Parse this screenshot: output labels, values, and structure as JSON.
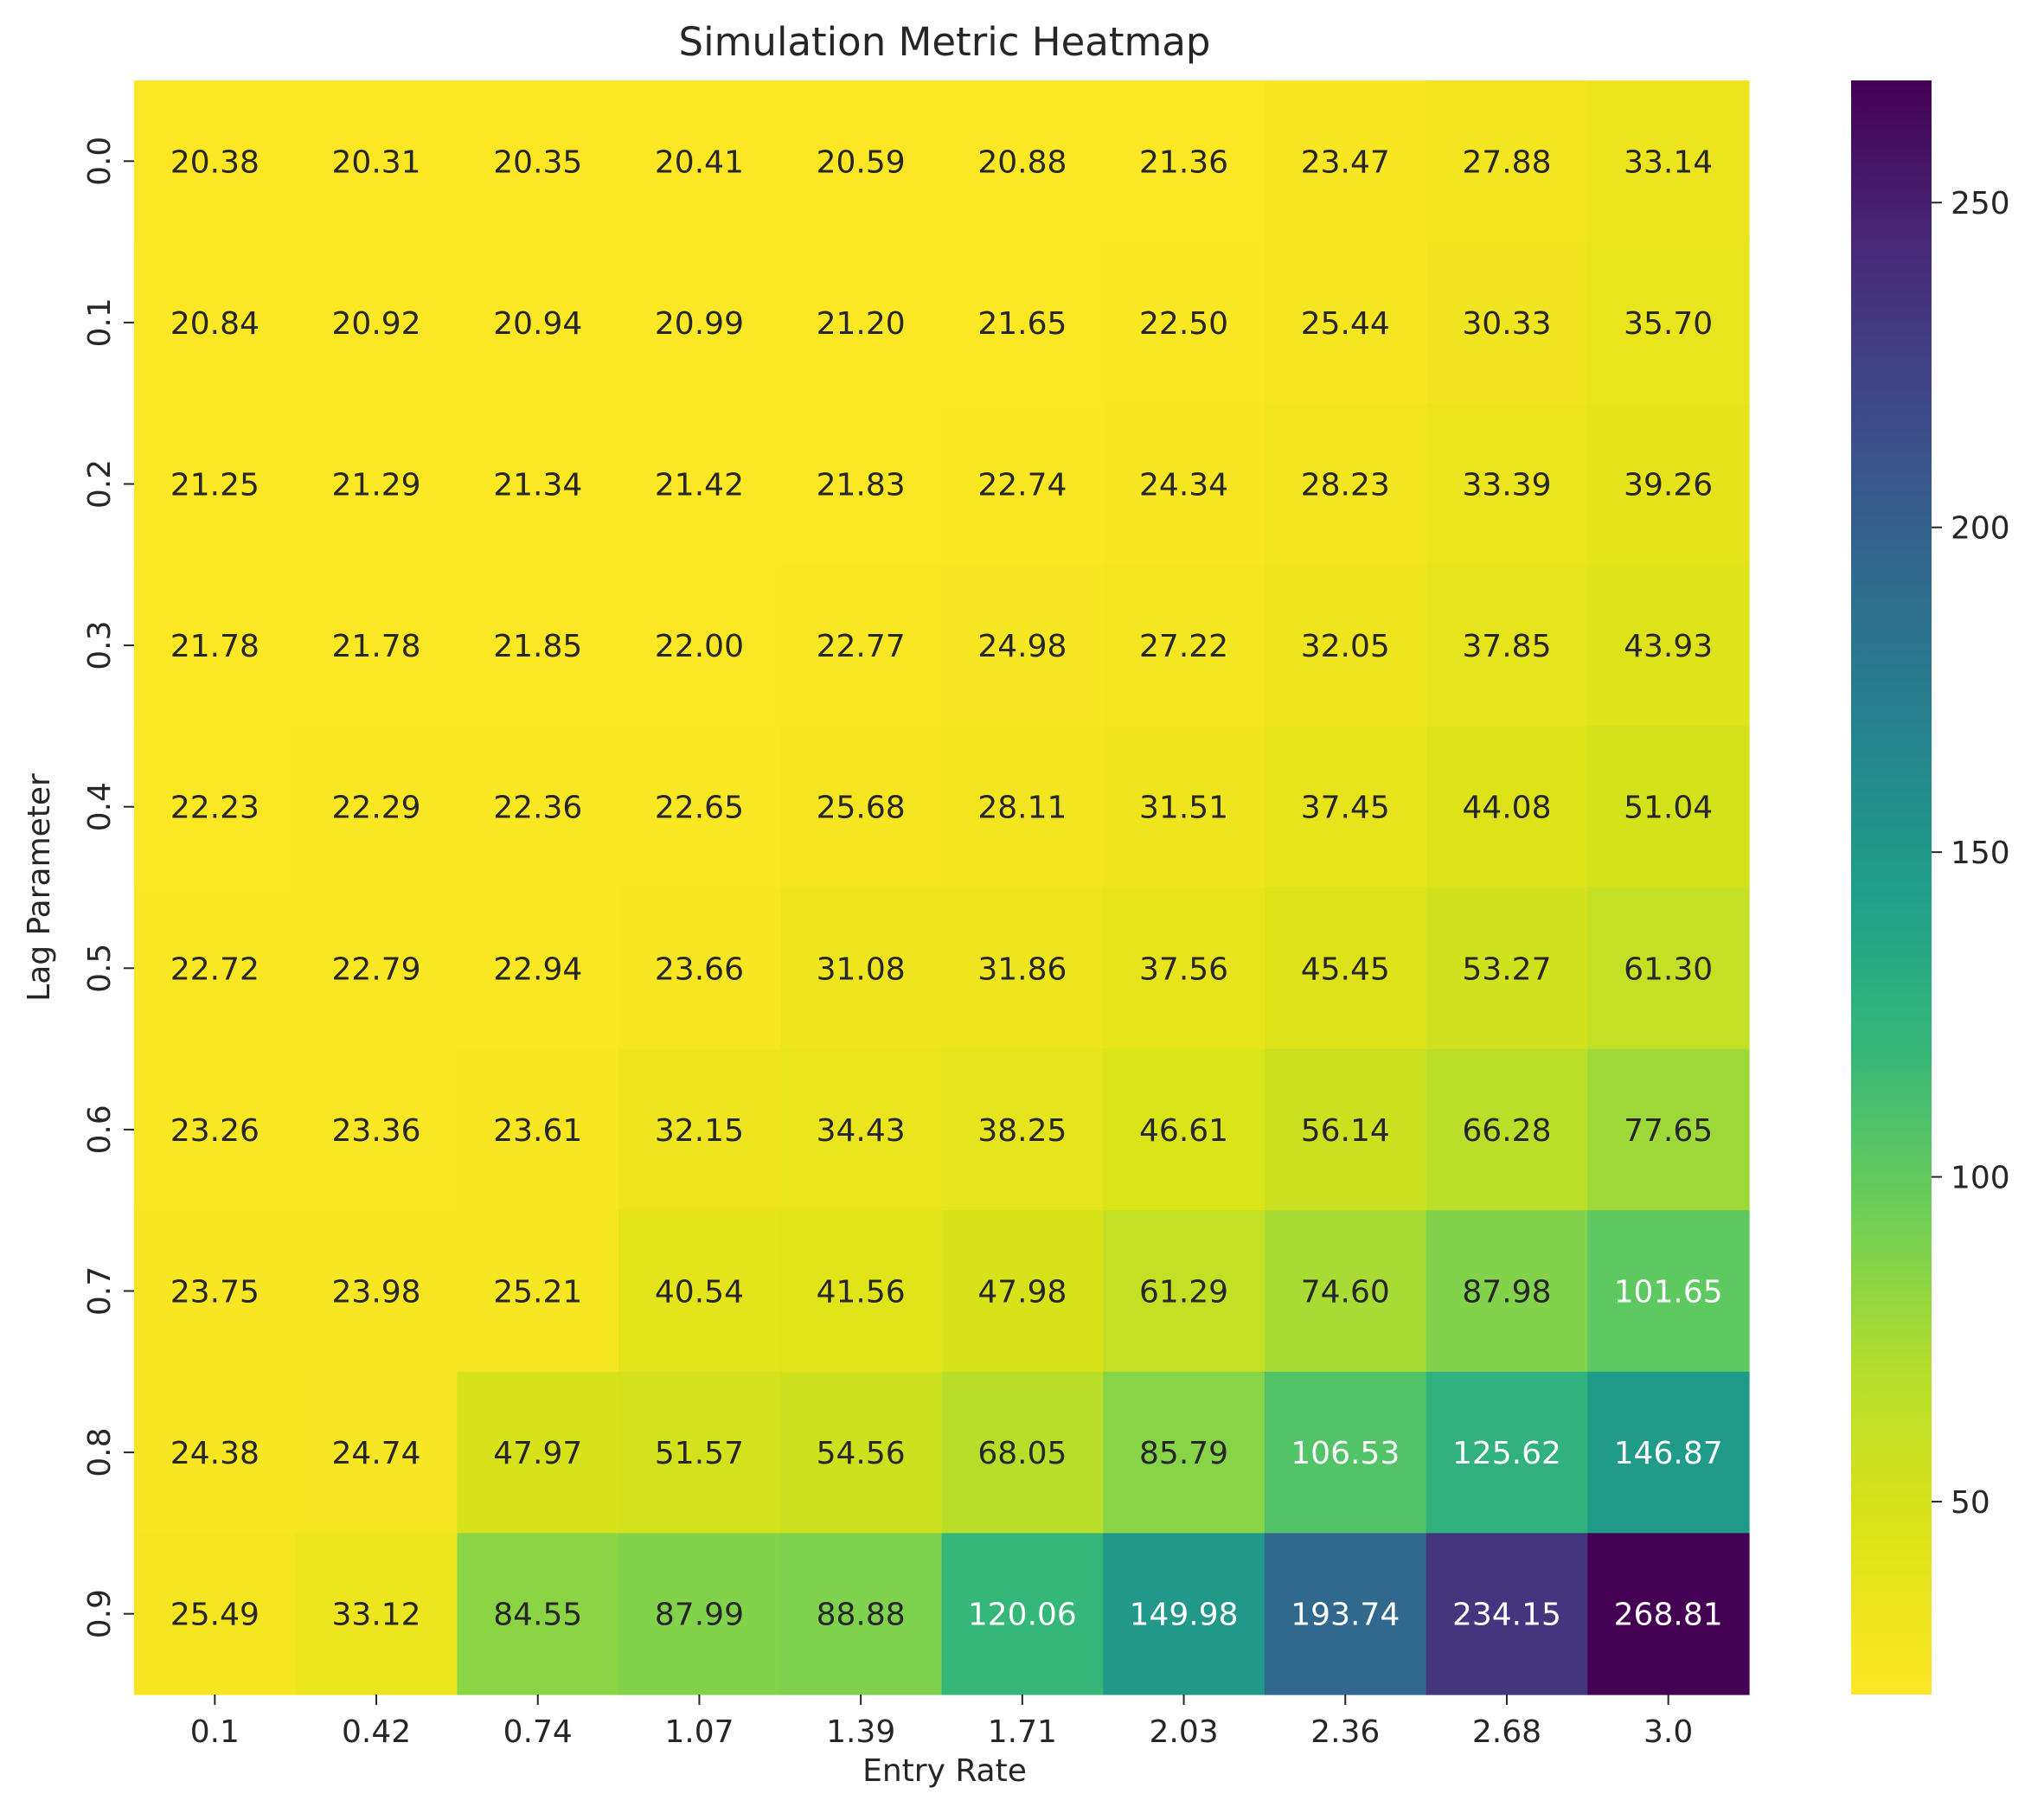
{
  "chart_data": {
    "type": "heatmap",
    "title": "Simulation Metric Heatmap",
    "xlabel": "Entry Rate",
    "ylabel": "Lag Parameter",
    "x_categories": [
      "0.1",
      "0.42",
      "0.74",
      "1.07",
      "1.39",
      "1.71",
      "2.03",
      "2.36",
      "2.68",
      "3.0"
    ],
    "y_categories": [
      "0.0",
      "0.1",
      "0.2",
      "0.3",
      "0.4",
      "0.5",
      "0.6",
      "0.7",
      "0.8",
      "0.9"
    ],
    "values": [
      [
        20.38,
        20.31,
        20.35,
        20.41,
        20.59,
        20.88,
        21.36,
        23.47,
        27.88,
        33.14
      ],
      [
        20.84,
        20.92,
        20.94,
        20.99,
        21.2,
        21.65,
        22.5,
        25.44,
        30.33,
        35.7
      ],
      [
        21.25,
        21.29,
        21.34,
        21.42,
        21.83,
        22.74,
        24.34,
        28.23,
        33.39,
        39.26
      ],
      [
        21.78,
        21.78,
        21.85,
        22.0,
        22.77,
        24.98,
        27.22,
        32.05,
        37.85,
        43.93
      ],
      [
        22.23,
        22.29,
        22.36,
        22.65,
        25.68,
        28.11,
        31.51,
        37.45,
        44.08,
        51.04
      ],
      [
        22.72,
        22.79,
        22.94,
        23.66,
        31.08,
        31.86,
        37.56,
        45.45,
        53.27,
        61.3
      ],
      [
        23.26,
        23.36,
        23.61,
        32.15,
        34.43,
        38.25,
        46.61,
        56.14,
        66.28,
        77.65
      ],
      [
        23.75,
        23.98,
        25.21,
        40.54,
        41.56,
        47.98,
        61.29,
        74.6,
        87.98,
        101.65
      ],
      [
        24.38,
        24.74,
        47.97,
        51.57,
        54.56,
        68.05,
        85.79,
        106.53,
        125.62,
        146.87
      ],
      [
        25.49,
        33.12,
        84.55,
        87.99,
        88.88,
        120.06,
        149.98,
        193.74,
        234.15,
        268.81
      ]
    ],
    "value_format": "2 decimals",
    "colormap": "viridis_r",
    "color_range": [
      20.31,
      268.81
    ],
    "colorbar_ticks": [
      "50",
      "100",
      "150",
      "200",
      "250"
    ],
    "annotation_colors": {
      "dark": "#262626",
      "light": "#ffffff"
    }
  }
}
